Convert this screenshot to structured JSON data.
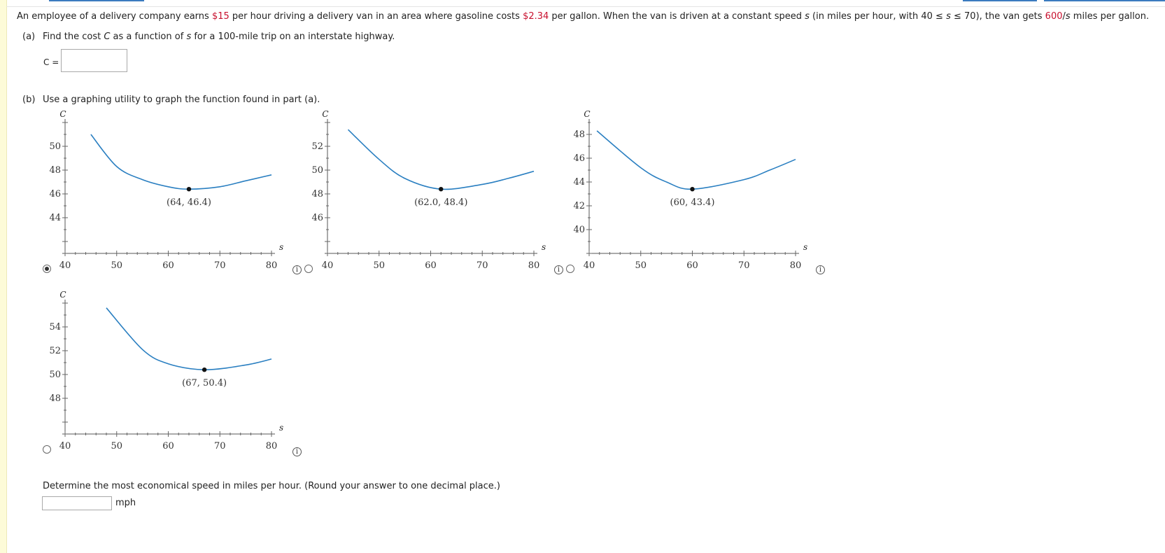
{
  "problem": {
    "p1": "An employee of a delivery company earns ",
    "wage": "$15",
    "p2": " per hour driving a delivery van in an area where gasoline costs ",
    "gas": "$2.34",
    "p3": " per gallon. When the van is driven at a constant speed ",
    "s1": "s",
    "p4": " (in miles per hour, with 40 ≤ ",
    "s2": "s",
    "p5": " ≤ 70), the van gets ",
    "mpg_num": "600",
    "mpg_slash": "/",
    "s3": "s",
    "p6": " miles per gallon."
  },
  "part_a": {
    "label": "(a)",
    "text": "Find the cost ",
    "c": "C",
    "text2": " as a function of ",
    "s": "s",
    "text3": " for a 100-mile trip on an interstate highway.",
    "c_label": "C =",
    "answer": ""
  },
  "part_b": {
    "label": "(b)",
    "text": "Use a graphing utility to graph the function found in part (a)."
  },
  "radio_options": [
    {
      "selected": true
    },
    {
      "selected": false
    },
    {
      "selected": false
    },
    {
      "selected": false
    }
  ],
  "info_icon": "i",
  "chart_data": [
    {
      "type": "line",
      "x_axis_label": "s",
      "y_axis_label": "C",
      "x_ticks": [
        "40",
        "50",
        "60",
        "70",
        "80"
      ],
      "y_ticks": [
        "44",
        "46",
        "48",
        "50"
      ],
      "xlim": [
        40,
        80
      ],
      "ylim": [
        41,
        52
      ],
      "min_point": [
        64,
        46.4
      ],
      "min_label": "(64, 46.4)",
      "x": [
        45,
        50,
        55,
        60,
        64,
        70,
        75,
        80
      ],
      "y": [
        51.0,
        48.3,
        47.2,
        46.6,
        46.4,
        46.6,
        47.1,
        47.6
      ]
    },
    {
      "type": "line",
      "x_axis_label": "s",
      "y_axis_label": "C",
      "x_ticks": [
        "40",
        "50",
        "60",
        "70",
        "80"
      ],
      "y_ticks": [
        "46",
        "48",
        "50",
        "52"
      ],
      "xlim": [
        40,
        80
      ],
      "ylim": [
        43,
        54
      ],
      "min_point": [
        62.0,
        48.4
      ],
      "min_label": "(62.0, 48.4)",
      "x": [
        44,
        50,
        55,
        62,
        70,
        75,
        80
      ],
      "y": [
        53.4,
        50.9,
        49.3,
        48.4,
        48.8,
        49.3,
        49.9
      ]
    },
    {
      "type": "line",
      "x_axis_label": "s",
      "y_axis_label": "C",
      "x_ticks": [
        "40",
        "50",
        "60",
        "70",
        "80"
      ],
      "y_ticks": [
        "40",
        "42",
        "44",
        "46",
        "48"
      ],
      "xlim": [
        40,
        80
      ],
      "ylim": [
        38,
        49
      ],
      "min_point": [
        60,
        43.4
      ],
      "min_label": "(60, 43.4)",
      "x": [
        41.5,
        50,
        55,
        60,
        70,
        75,
        80
      ],
      "y": [
        48.3,
        45.2,
        44.0,
        43.4,
        44.2,
        45.0,
        45.9
      ]
    },
    {
      "type": "line",
      "x_axis_label": "s",
      "y_axis_label": "C",
      "x_ticks": [
        "40",
        "50",
        "60",
        "70",
        "80"
      ],
      "y_ticks": [
        "48",
        "50",
        "52",
        "54"
      ],
      "xlim": [
        40,
        80
      ],
      "ylim": [
        45,
        56
      ],
      "min_point": [
        67,
        50.4
      ],
      "min_label": "(67, 50.4)",
      "x": [
        48,
        55,
        60,
        67,
        75,
        80
      ],
      "y": [
        55.6,
        52.1,
        50.9,
        50.4,
        50.8,
        51.3
      ]
    }
  ],
  "determine": {
    "text": "Determine the most economical speed in miles per hour. (Round your answer to one decimal place.)",
    "answer": "",
    "unit": "mph"
  }
}
